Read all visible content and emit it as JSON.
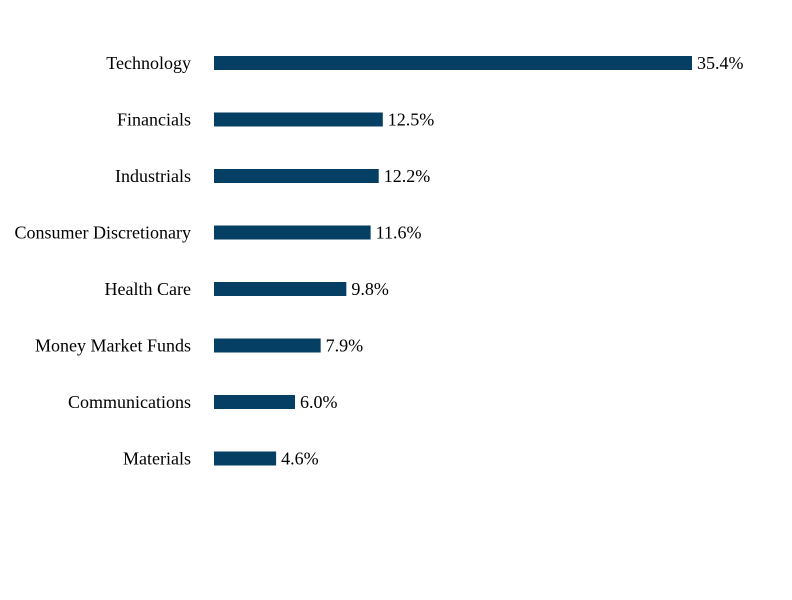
{
  "chart_data": {
    "type": "bar",
    "orientation": "horizontal",
    "categories": [
      "Technology",
      "Financials",
      "Industrials",
      "Consumer Discretionary",
      "Health Care",
      "Money Market Funds",
      "Communications",
      "Materials"
    ],
    "values": [
      35.4,
      12.5,
      12.2,
      11.6,
      9.8,
      7.9,
      6.0,
      4.6
    ],
    "value_labels": [
      "35.4%",
      "12.5%",
      "12.2%",
      "11.6%",
      "9.8%",
      "7.9%",
      "6.0%",
      "4.6%"
    ],
    "unit": "%",
    "xlim": [
      0,
      35.4
    ],
    "grid": false,
    "legend": "none",
    "bar_color": "#053f63",
    "title": "",
    "xlabel": "",
    "ylabel": ""
  }
}
